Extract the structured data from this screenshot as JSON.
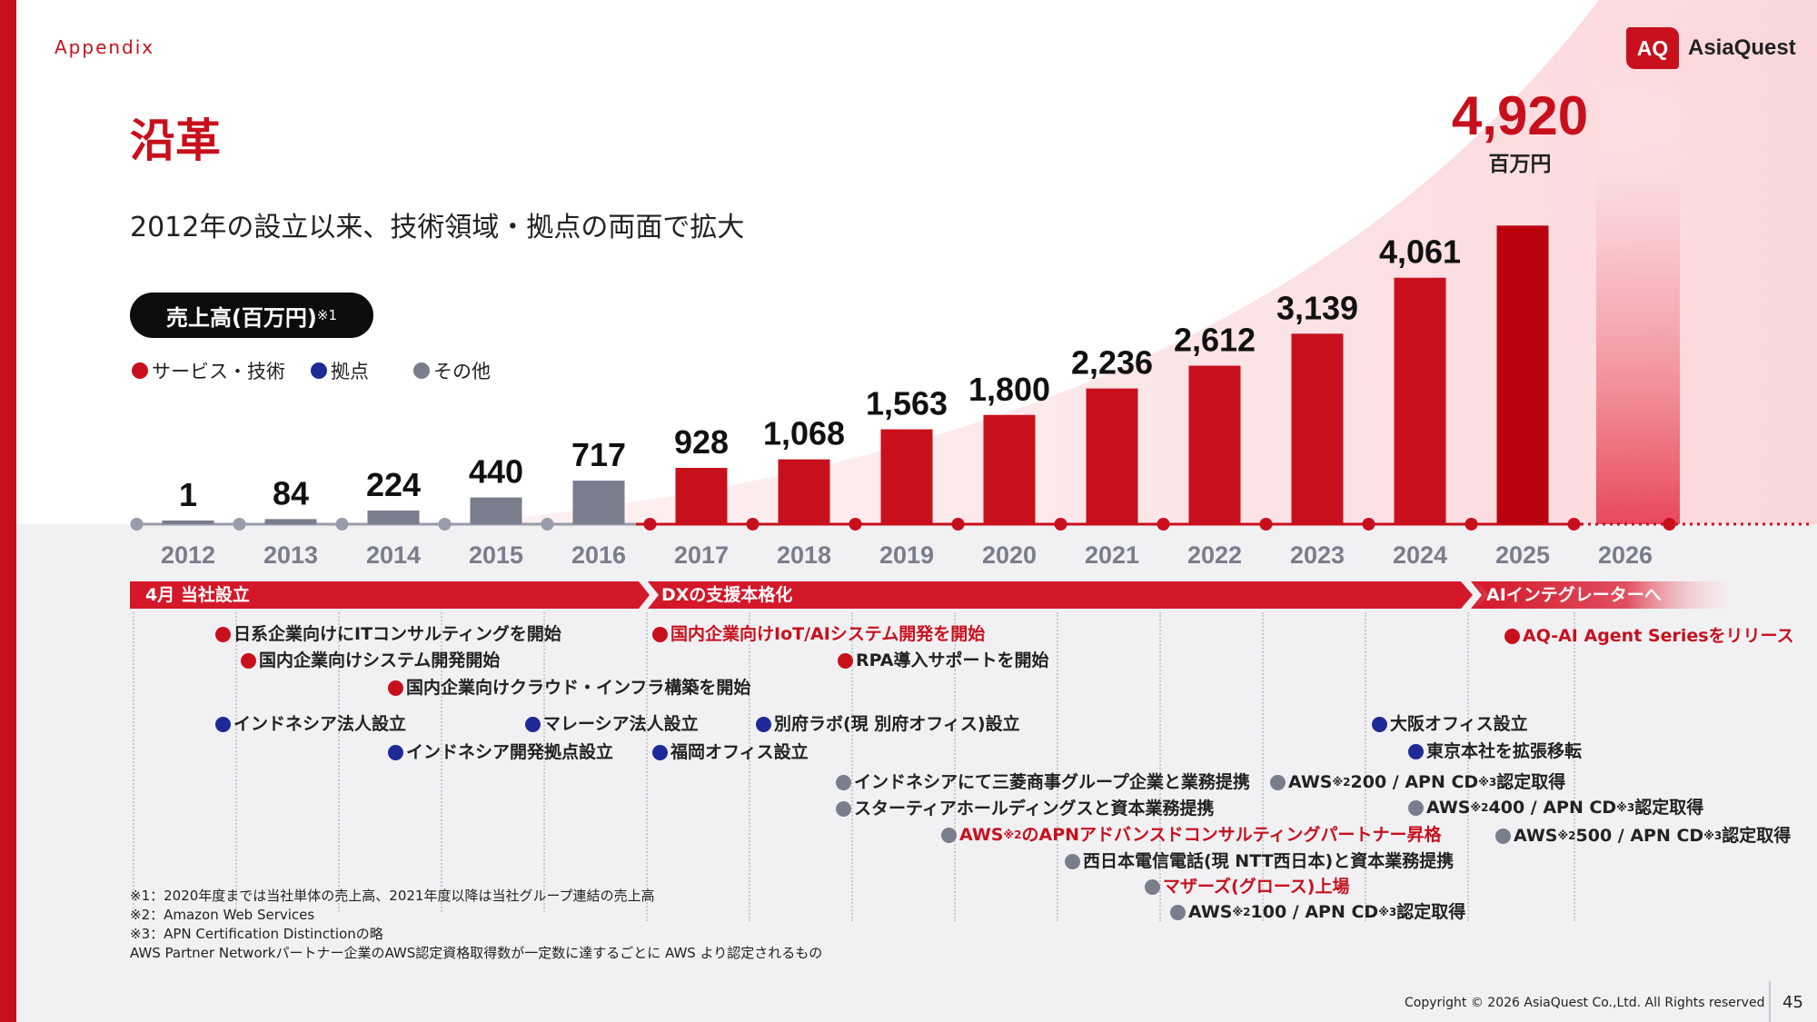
{
  "header": {
    "section": "Appendix",
    "logo_mark": "AQ",
    "logo_name": "AsiaQuest"
  },
  "title": "沿革",
  "subtitle": "2012年の設立以来、技術領域・拠点の両面で拡大",
  "sales_label": {
    "text": "売上高(百万円)",
    "note": "※1"
  },
  "legend": [
    {
      "label": "サービス・技術",
      "color": "#c8101d"
    },
    {
      "label": "拠点",
      "color": "#1e2a96"
    },
    {
      "label": "その他",
      "color": "#7a7d8c"
    }
  ],
  "chart_data": {
    "type": "bar",
    "categories": [
      "2012",
      "2013",
      "2014",
      "2015",
      "2016",
      "2017",
      "2018",
      "2019",
      "2020",
      "2021",
      "2022",
      "2023",
      "2024",
      "2025",
      "2026"
    ],
    "values": [
      1,
      84,
      224,
      440,
      717,
      928,
      1068,
      1563,
      1800,
      2236,
      2612,
      3139,
      4061,
      4920,
      null
    ],
    "value_labels": [
      "1",
      "84",
      "224",
      "440",
      "717",
      "928",
      "1,068",
      "1,563",
      "1,800",
      "2,236",
      "2,612",
      "3,139",
      "4,061",
      "4,920",
      ""
    ],
    "unit_label": "百万円",
    "bar_colors": {
      "before_2017": "#7a7d8c",
      "from_2017": "#c8101d",
      "highlight_2025": "#b8000f"
    },
    "ylabel": "",
    "xlabel": ""
  },
  "phases": [
    {
      "label": "4月  当社設立"
    },
    {
      "label": "DXの支援本格化"
    },
    {
      "label": "AIインテグレーターへ"
    }
  ],
  "events": [
    {
      "text": "日系企業向けにITコンサルティングを開始",
      "category": "service"
    },
    {
      "text": "国内企業向けシステム開発開始",
      "category": "service"
    },
    {
      "text": "国内企業向けクラウド・インフラ構築を開始",
      "category": "service"
    },
    {
      "text": "インドネシア法人設立",
      "category": "base"
    },
    {
      "text": "マレーシア法人設立",
      "category": "base"
    },
    {
      "text": "インドネシア開発拠点設立",
      "category": "base"
    },
    {
      "text": "国内企業向けIoT/AIシステム開発を開始",
      "category": "service"
    },
    {
      "text": "RPA導入サポートを開始",
      "category": "service"
    },
    {
      "text": "別府ラボ(現 別府オフィス)設立",
      "category": "base"
    },
    {
      "text": "福岡オフィス設立",
      "category": "base"
    },
    {
      "text": "インドネシアにて三菱商事グループ企業と業務提携",
      "category": "other"
    },
    {
      "text": "スターティアホールディングスと資本業務提携",
      "category": "other"
    },
    {
      "pre": "AWS",
      "sup": "※2",
      "post": "のAPNアドバンスドコンサルティングパートナー昇格",
      "category": "other",
      "red_text": true
    },
    {
      "text": "西日本電信電話(現 NTT西日本)と資本業務提携",
      "category": "other"
    },
    {
      "text": "マザーズ(グロース)上場",
      "category": "other",
      "red_text": true
    },
    {
      "pre": "AWS",
      "sup": "※2",
      "mid": "100 / APN CD",
      "sup2": "※3",
      "post": "認定取得",
      "category": "other"
    },
    {
      "pre": "AWS",
      "sup": "※2",
      "mid": "200 / APN CD",
      "sup2": "※3",
      "post": "認定取得",
      "category": "other"
    },
    {
      "text": "大阪オフィス設立",
      "category": "base"
    },
    {
      "text": "東京本社を拡張移転",
      "category": "base"
    },
    {
      "pre": "AWS",
      "sup": "※2",
      "mid": "400 / APN CD",
      "sup2": "※3",
      "post": "認定取得",
      "category": "other"
    },
    {
      "text": "AQ-AI Agent Seriesをリリース",
      "category": "service",
      "red_text": true
    },
    {
      "pre": "AWS",
      "sup": "※2",
      "mid": "500 / APN CD",
      "sup2": "※3",
      "post": "認定取得",
      "category": "other"
    }
  ],
  "footnotes": [
    "※1：2020年度までは当社単体の売上高、2021年度以降は当社グループ連結の売上高",
    "※2：Amazon Web Services",
    "※3：APN Certification Distinctionの略",
    "AWS Partner Networkパートナー企業のAWS認定資格取得数が一定数に達するごとに AWS より認定されるもの"
  ],
  "copyright": "Copyright © 2026 AsiaQuest Co.,Ltd. All Rights reserved",
  "page_number": "45"
}
